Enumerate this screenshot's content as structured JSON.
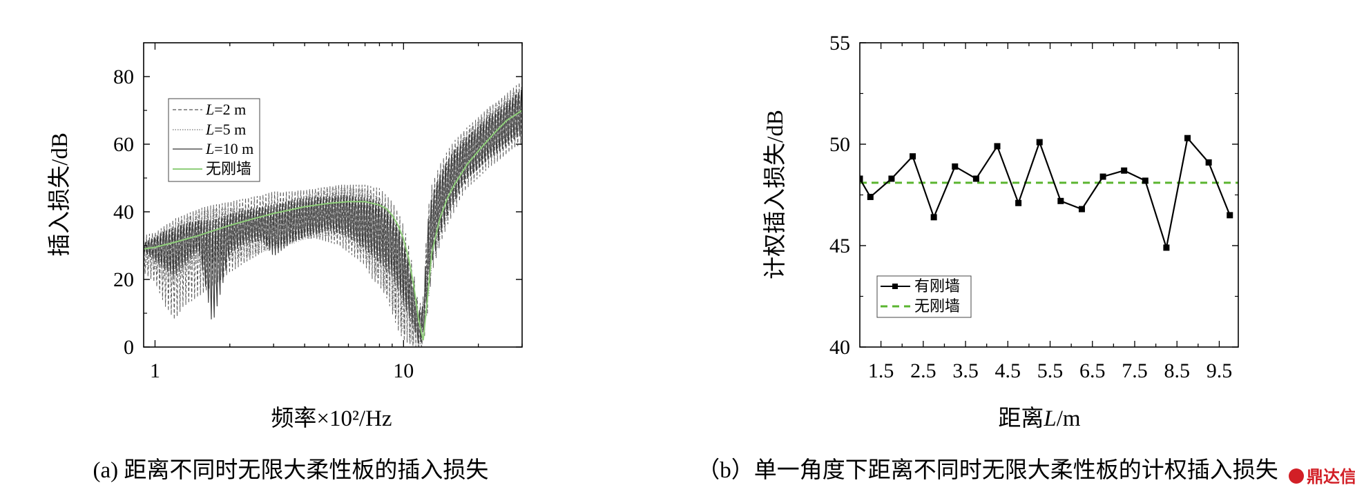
{
  "chart_data": [
    {
      "type": "line",
      "panel": "a",
      "xscale": "log",
      "xlim": [
        0.9,
        30
      ],
      "ylim": [
        0,
        90
      ],
      "xticks": [
        {
          "v": 1,
          "label": "1"
        },
        {
          "v": 10,
          "label": "10"
        }
      ],
      "yticks": [
        {
          "v": 0,
          "label": "0"
        },
        {
          "v": 20,
          "label": "20"
        },
        {
          "v": 40,
          "label": "40"
        },
        {
          "v": 60,
          "label": "60"
        },
        {
          "v": 80,
          "label": "80"
        }
      ],
      "ylabel": "插入损失/dB",
      "xlabel": "频率×10²/Hz",
      "caption": "(a) 距离不同时无限大柔性板的插入损失",
      "legend_position": "top-left",
      "series": [
        {
          "name": "L=2 m",
          "name_italic": "L",
          "name_rest": "=2 m",
          "color": "#555555",
          "dash": "5 3",
          "freq": [
            0.9,
            1.0,
            1.1,
            1.2,
            1.3,
            1.5,
            1.7,
            2.0,
            2.3,
            2.7,
            3.0,
            3.5,
            4.0,
            4.5,
            5.0,
            5.5,
            6.0,
            6.5,
            7.0,
            7.5,
            8.0,
            8.5,
            9.0,
            9.5,
            10.0,
            10.5,
            11.0,
            11.5,
            12.0,
            12.5,
            13.0,
            14.0,
            15.0,
            16.0,
            17.0,
            18.0,
            20.0,
            22.0,
            24.0,
            26.0,
            28.0,
            30.0
          ],
          "upper": [
            33,
            34,
            36,
            38,
            39,
            41,
            42,
            43,
            44,
            45,
            46,
            46,
            46.5,
            47,
            47.5,
            48,
            48,
            48,
            48,
            47.5,
            47,
            45,
            43,
            40,
            36,
            30,
            22,
            12,
            15,
            40,
            48,
            54,
            58,
            61,
            63,
            65,
            68,
            71,
            73,
            75,
            77,
            79
          ],
          "lower": [
            22,
            19,
            12,
            8,
            12,
            15,
            18,
            22,
            25,
            28,
            30,
            31,
            32,
            32,
            31,
            30,
            28,
            26,
            24,
            20,
            18,
            15,
            10,
            5,
            2,
            1,
            0,
            0,
            0,
            10,
            22,
            30,
            36,
            40,
            44,
            47,
            50,
            53,
            55,
            57,
            59,
            60
          ]
        },
        {
          "name": "L=5 m",
          "name_italic": "L",
          "name_rest": "=5 m",
          "color": "#888888",
          "dash": "1.5 2",
          "freq": [
            0.9,
            1.0,
            1.1,
            1.2,
            1.3,
            1.5,
            1.7,
            2.0,
            2.3,
            2.7,
            3.0,
            3.5,
            4.0,
            4.5,
            5.0,
            5.5,
            6.0,
            6.5,
            7.0,
            7.5,
            8.0,
            8.5,
            9.0,
            9.5,
            10.0,
            10.5,
            11.0,
            11.5,
            12.0,
            12.5,
            13.0,
            14.0,
            15.0,
            16.0,
            17.0,
            18.0,
            20.0,
            22.0,
            24.0,
            26.0,
            28.0,
            30.0
          ],
          "upper": [
            32,
            34,
            36,
            37,
            38,
            40,
            41,
            42,
            43,
            44,
            45,
            45.5,
            46,
            46.5,
            47,
            47,
            47,
            47,
            47,
            46.5,
            46,
            44,
            42,
            39,
            35,
            29,
            21,
            12,
            14,
            39,
            47,
            53,
            57,
            60,
            62,
            64,
            67,
            70,
            72,
            74,
            76,
            78
          ],
          "lower": [
            24,
            22,
            18,
            16,
            18,
            20,
            22,
            24,
            26,
            28,
            29,
            30,
            31,
            31,
            30,
            29,
            27,
            25,
            23,
            20,
            18,
            15,
            11,
            7,
            4,
            2,
            1,
            0,
            1,
            11,
            23,
            31,
            37,
            41,
            45,
            48,
            51,
            54,
            56,
            58,
            60,
            61
          ]
        },
        {
          "name": "L=10 m",
          "name_italic": "L",
          "name_rest": "=10 m",
          "color": "#333333",
          "dash": "",
          "freq": [
            0.9,
            1.0,
            1.1,
            1.2,
            1.3,
            1.5,
            1.7,
            2.0,
            2.3,
            2.7,
            3.0,
            3.5,
            4.0,
            4.5,
            5.0,
            5.5,
            6.0,
            6.5,
            7.0,
            7.5,
            8.0,
            8.5,
            9.0,
            9.5,
            10.0,
            10.5,
            11.0,
            11.5,
            12.0,
            12.5,
            13.0,
            14.0,
            15.0,
            16.0,
            17.0,
            18.0,
            20.0,
            22.0,
            24.0,
            26.0,
            28.0,
            30.0
          ],
          "upper": [
            31,
            33,
            35,
            36,
            37,
            38,
            39,
            40,
            41,
            42,
            43,
            44,
            44.5,
            45,
            45,
            45.5,
            45.5,
            45,
            45,
            44.5,
            44,
            42,
            40,
            37,
            33,
            27,
            20,
            11,
            13,
            38,
            46,
            52,
            56,
            59,
            61,
            63,
            66,
            69,
            71,
            73,
            75,
            77
          ],
          "lower": [
            28,
            25,
            22,
            20,
            23,
            28,
            5,
            27,
            30,
            31,
            26,
            30,
            32,
            33,
            34,
            33,
            32,
            30,
            28,
            26,
            24,
            22,
            20,
            16,
            12,
            8,
            5,
            0,
            2,
            12,
            24,
            32,
            38,
            42,
            46,
            49,
            52,
            55,
            57,
            59,
            61,
            62
          ]
        },
        {
          "name": "无刚墙",
          "color": "#8fce7a",
          "dash": "",
          "x": [
            0.9,
            1.0,
            1.2,
            1.5,
            2.0,
            2.5,
            3.0,
            4.0,
            5.0,
            6.0,
            7.0,
            8.0,
            8.5,
            9.0,
            9.5,
            10.0,
            10.5,
            11.0,
            11.5,
            12.0,
            12.5,
            13.0,
            14.0,
            15.0,
            16.0,
            18.0,
            20.0,
            23.0,
            26.0,
            30.0
          ],
          "y": [
            29,
            29.5,
            31,
            33,
            36,
            38,
            39.5,
            41.5,
            42.5,
            43,
            43,
            42,
            41,
            39,
            36,
            32,
            26,
            18,
            8,
            2,
            15,
            28,
            38,
            44,
            48,
            54,
            58,
            63,
            67,
            70
          ]
        }
      ]
    },
    {
      "type": "line",
      "panel": "b",
      "xlim": [
        1.0,
        9.95
      ],
      "ylim": [
        40,
        55
      ],
      "xticks": [
        {
          "v": 1.5,
          "label": "1.5"
        },
        {
          "v": 2.5,
          "label": "2.5"
        },
        {
          "v": 3.5,
          "label": "3.5"
        },
        {
          "v": 4.5,
          "label": "4.5"
        },
        {
          "v": 5.5,
          "label": "5.5"
        },
        {
          "v": 6.5,
          "label": "6.5"
        },
        {
          "v": 7.5,
          "label": "7.5"
        },
        {
          "v": 8.5,
          "label": "8.5"
        },
        {
          "v": 9.5,
          "label": "9.5"
        }
      ],
      "yticks": [
        {
          "v": 40,
          "label": "40"
        },
        {
          "v": 45,
          "label": "45"
        },
        {
          "v": 50,
          "label": "50"
        },
        {
          "v": 55,
          "label": "55"
        }
      ],
      "ylabel": "计权插入损失/dB",
      "xlabel_prefix": "距离",
      "xlabel_italic": "L",
      "xlabel_suffix": "/m",
      "caption": "（b）单一角度下距离不同时无限大柔性板的计权插入损失",
      "legend_position": "bottom-left",
      "series": [
        {
          "name": "有刚墙",
          "color": "#000000",
          "marker": "square",
          "x": [
            1.0,
            1.25,
            1.75,
            2.25,
            2.75,
            3.25,
            3.75,
            4.25,
            4.75,
            5.25,
            5.75,
            6.25,
            6.75,
            7.25,
            7.75,
            8.25,
            8.75,
            9.25,
            9.75
          ],
          "y": [
            48.3,
            47.4,
            48.3,
            49.4,
            46.4,
            48.9,
            48.3,
            49.9,
            47.1,
            50.1,
            47.2,
            46.8,
            48.4,
            48.7,
            48.2,
            44.9,
            50.3,
            49.1,
            46.5
          ]
        },
        {
          "name": "无刚墙",
          "color": "#5ab52f",
          "dash": "10 7",
          "x": [
            1.0,
            9.95
          ],
          "y": [
            48.1,
            48.1
          ]
        }
      ]
    }
  ],
  "watermark": "鼎达信"
}
